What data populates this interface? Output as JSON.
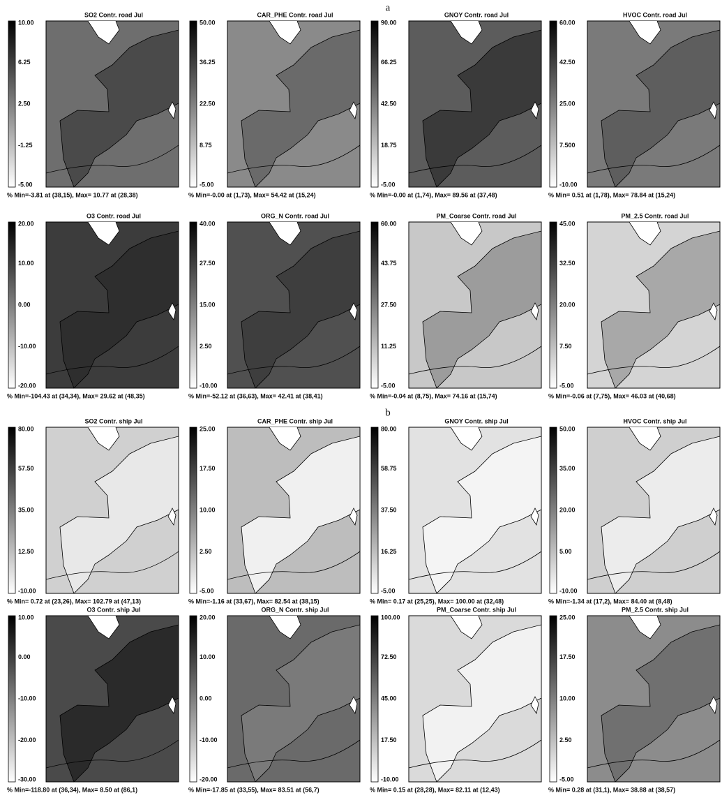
{
  "section_labels": [
    "a",
    "b"
  ],
  "panels": [
    {
      "title": "SO2 Contr. road Jul",
      "colorbar_labels": [
        "10.00",
        "6.25",
        "2.50",
        "-1.25",
        "-5.00"
      ],
      "footer": "% Min=-3.81 at (38,15), Max= 10.77 at (28,38)"
    },
    {
      "title": "CAR_PHE Contr. road Jul",
      "colorbar_labels": [
        "50.00",
        "36.25",
        "22.50",
        "8.75",
        "-5.00"
      ],
      "footer": "% Min=-0.00 at (1,73), Max= 54.42 at (15,24)"
    },
    {
      "title": "GNOY Contr. road Jul",
      "colorbar_labels": [
        "90.00",
        "66.25",
        "42.50",
        "18.75",
        "-5.00"
      ],
      "footer": "% Min=-0.00 at (1,74), Max= 89.56 at (37,48)"
    },
    {
      "title": "HVOC Contr. road Jul",
      "colorbar_labels": [
        "60.00",
        "42.50",
        "25.00",
        "7.500",
        "-10.00"
      ],
      "footer": "% Min= 0.51 at (1,78), Max= 78.84 at (15,24)"
    },
    {
      "title": "O3 Contr. road Jul",
      "colorbar_labels": [
        "20.00",
        "10.00",
        "0.00",
        "-10.00",
        "-20.00"
      ],
      "footer": "% Min=-104.43 at (34,34), Max= 29.62 at (48,35)"
    },
    {
      "title": "ORG_N Contr. road Jul",
      "colorbar_labels": [
        "40.00",
        "27.50",
        "15.00",
        "2.50",
        "-10.00"
      ],
      "footer": "% Min=-52.12 at (36,63), Max= 42.41 at (38,41)"
    },
    {
      "title": "PM_Coarse Contr. road Jul",
      "colorbar_labels": [
        "60.00",
        "43.75",
        "27.50",
        "11.25",
        "-5.00"
      ],
      "footer": "% Min=-0.04 at (8,75), Max= 74.16 at (15,74)"
    },
    {
      "title": "PM_2.5 Contr. road Jul",
      "colorbar_labels": [
        "45.00",
        "32.50",
        "20.00",
        "7.50",
        "-5.00"
      ],
      "footer": "% Min=-0.06 at (7,75), Max= 46.03 at (40,68)"
    },
    {
      "title": "SO2 Contr. ship Jul",
      "colorbar_labels": [
        "80.00",
        "57.50",
        "35.00",
        "12.50",
        "-10.00"
      ],
      "footer": "% Min= 0.72 at (23,26), Max= 102.79 at (47,13)"
    },
    {
      "title": "CAR_PHE Contr. ship Jul",
      "colorbar_labels": [
        "25.00",
        "17.50",
        "10.00",
        "2.50",
        "-5.00"
      ],
      "footer": "% Min=-1.16 at (33,67), Max= 82.54 at (38,15)"
    },
    {
      "title": "GNOY Contr. ship Jul",
      "colorbar_labels": [
        "80.00",
        "58.75",
        "37.50",
        "16.25",
        "-5.00"
      ],
      "footer": "% Min= 0.17 at (25,25), Max= 100.00 at (32,48)"
    },
    {
      "title": "HVOC Contr. ship Jul",
      "colorbar_labels": [
        "50.00",
        "35.00",
        "20.00",
        "5.00",
        "-10.00"
      ],
      "footer": "% Min=-1.34 at (17,2), Max= 84.40 at (8,48)"
    },
    {
      "title": "O3 Contr. ship Jul",
      "colorbar_labels": [
        "10.00",
        "0.00",
        "-10.00",
        "-20.00",
        "-30.00"
      ],
      "footer": "% Min=-118.80 at (36,34), Max= 8.50 at (86,1)"
    },
    {
      "title": "ORG_N Contr. ship Jul",
      "colorbar_labels": [
        "20.00",
        "10.00",
        "0.00",
        "-10.00",
        "-20.00"
      ],
      "footer": "% Min=-17.85 at (33,55), Max= 83.51 at (56,7)"
    },
    {
      "title": "PM_Coarse Contr. ship Jul",
      "colorbar_labels": [
        "100.00",
        "72.50",
        "45.00",
        "17.50",
        "-10.00"
      ],
      "footer": "% Min= 0.15 at (28,28), Max= 82.11 at (12,43)"
    },
    {
      "title": "PM_2.5 Contr. ship Jul",
      "colorbar_labels": [
        "25.00",
        "17.50",
        "10.00",
        "2.50",
        "-5.00"
      ],
      "footer": "% Min= 0.28 at (31,1), Max= 38.88 at (38,57)"
    }
  ]
}
